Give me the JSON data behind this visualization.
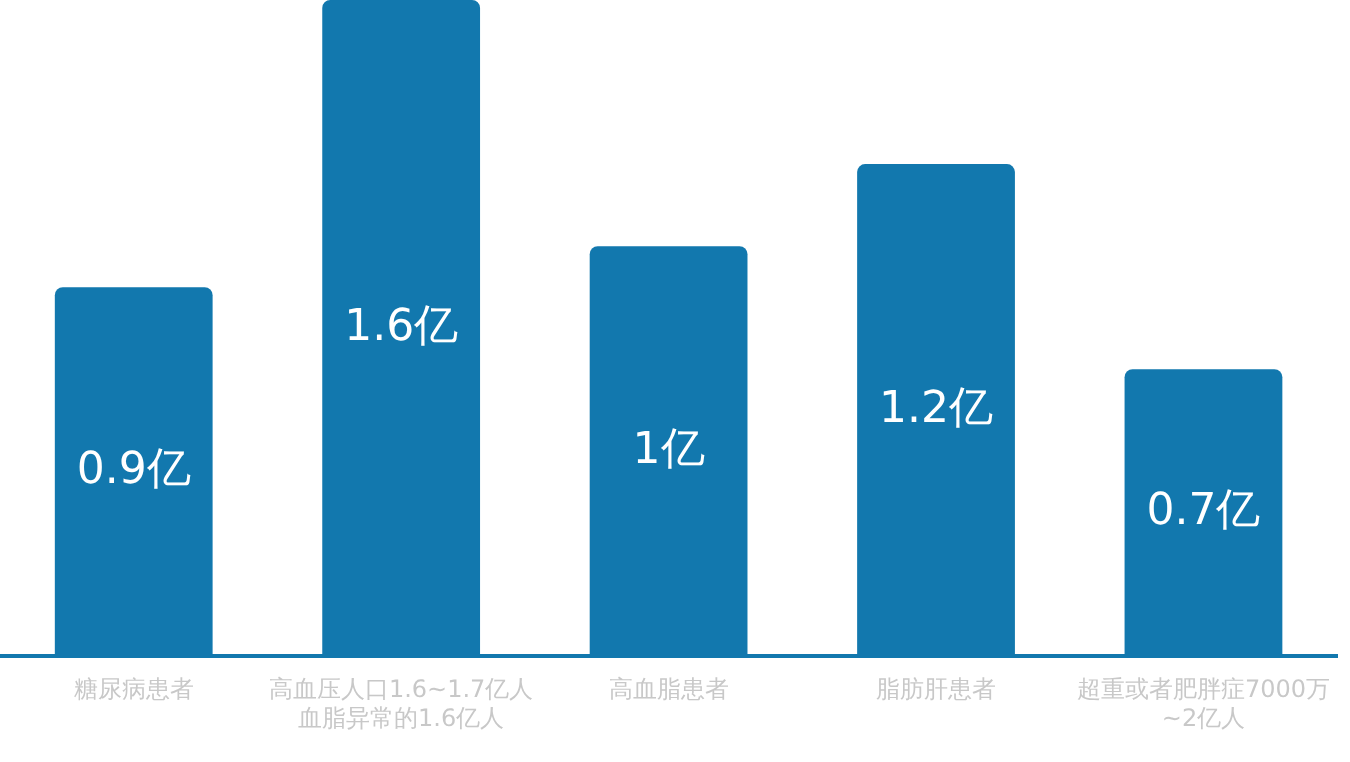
{
  "chart_data": {
    "type": "bar",
    "categories": [
      "糖尿病患者",
      "高血压人口1.6~1.7亿人血脂异常的1.6亿人",
      "高血脂患者",
      "脂肪肝患者",
      "超重或者肥胖症7000万~2亿人"
    ],
    "values": [
      0.9,
      1.6,
      1,
      1.2,
      0.7
    ],
    "color": "#1278ae",
    "value_labels": [
      "0.9亿",
      "1.6亿",
      "1亿",
      "1.2亿",
      "0.7亿"
    ],
    "grid": false,
    "legend": false
  }
}
